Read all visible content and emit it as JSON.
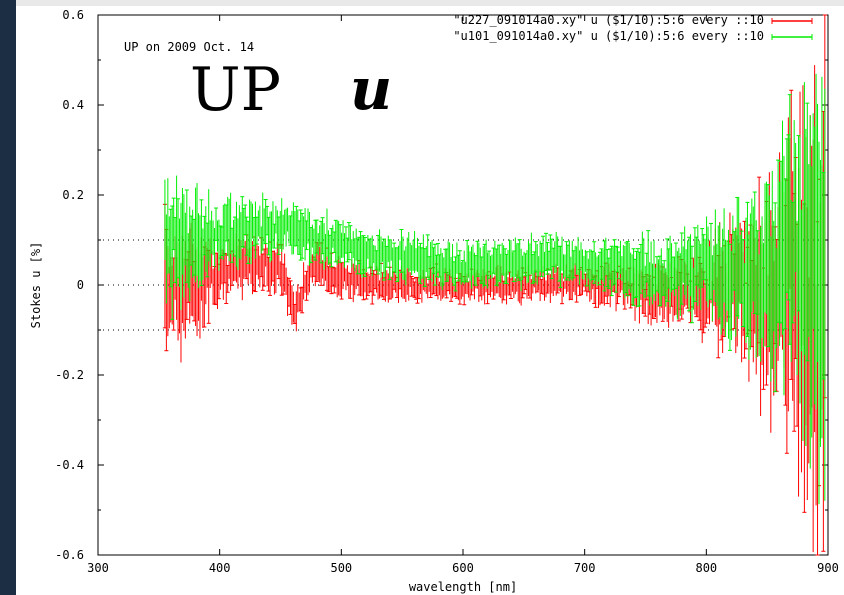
{
  "chart_data": {
    "type": "scatter",
    "title": "UP",
    "title_symbol": "u",
    "subtitle": "UP on 2009 Oct. 14",
    "xlabel": "wavelength [nm]",
    "ylabel": "Stokes u [%]",
    "xlim": [
      300,
      900
    ],
    "ylim": [
      -0.6,
      0.6
    ],
    "xticks": [
      "300",
      "400",
      "500",
      "600",
      "700",
      "800",
      "900"
    ],
    "yticks": [
      "-0.6",
      "-0.4",
      "-0.2",
      "0",
      "0.2",
      "0.4",
      "0.6"
    ],
    "reference_lines": [
      0.1,
      0,
      -0.1
    ],
    "legend_position": "top-right",
    "error_bars": true,
    "series": [
      {
        "name": "\"u227_091014a0.xy\" u ($1/10):5:6 every ::10",
        "color": "#ff0000",
        "x": [
          355,
          375,
          400,
          425,
          450,
          462,
          475,
          500,
          525,
          550,
          575,
          600,
          625,
          650,
          675,
          700,
          725,
          750,
          775,
          800,
          825,
          850,
          860,
          870,
          880,
          890,
          898
        ],
        "y": [
          0.0,
          0.0,
          0.03,
          0.05,
          0.04,
          -0.06,
          0.04,
          0.02,
          0.0,
          0.0,
          0.0,
          0.0,
          0.0,
          0.0,
          0.0,
          0.0,
          0.0,
          -0.02,
          -0.02,
          -0.01,
          0.0,
          -0.02,
          0.0,
          0.05,
          0.0,
          -0.1,
          0.0
        ],
        "err": [
          0.12,
          0.1,
          0.05,
          0.05,
          0.05,
          0.04,
          0.04,
          0.04,
          0.03,
          0.03,
          0.03,
          0.03,
          0.03,
          0.03,
          0.03,
          0.03,
          0.04,
          0.05,
          0.06,
          0.08,
          0.12,
          0.2,
          0.25,
          0.3,
          0.35,
          0.4,
          0.45
        ]
      },
      {
        "name": "\"u101_091014a0.xy\" u ($1/10):5:6 every ::10",
        "color": "#00ee00",
        "x": [
          355,
          375,
          400,
          425,
          450,
          462,
          475,
          500,
          525,
          550,
          575,
          600,
          625,
          650,
          675,
          700,
          725,
          750,
          775,
          800,
          825,
          850,
          860,
          870,
          880,
          890,
          898
        ],
        "y": [
          0.1,
          0.09,
          0.11,
          0.12,
          0.13,
          0.12,
          0.11,
          0.09,
          0.07,
          0.06,
          0.05,
          0.04,
          0.05,
          0.05,
          0.06,
          0.05,
          0.04,
          0.03,
          0.02,
          0.03,
          0.02,
          0.02,
          0.05,
          0.08,
          0.03,
          0.05,
          0.0
        ],
        "err": [
          0.12,
          0.1,
          0.06,
          0.06,
          0.05,
          0.05,
          0.05,
          0.04,
          0.04,
          0.04,
          0.04,
          0.04,
          0.04,
          0.04,
          0.04,
          0.04,
          0.05,
          0.06,
          0.07,
          0.08,
          0.12,
          0.18,
          0.22,
          0.25,
          0.3,
          0.35,
          0.4
        ]
      }
    ]
  }
}
